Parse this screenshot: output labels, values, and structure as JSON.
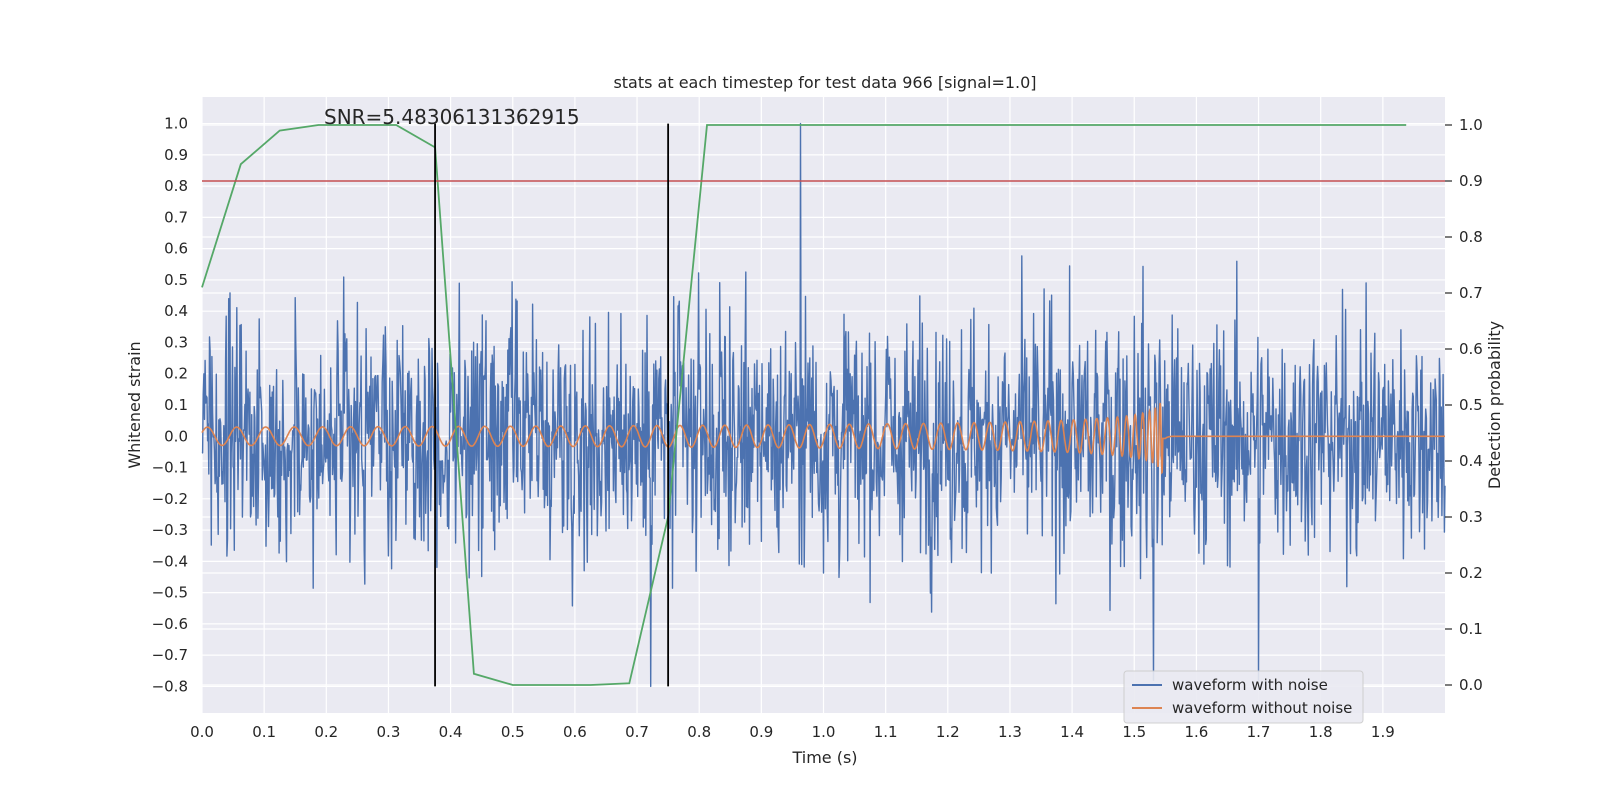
{
  "chart_data": {
    "type": "line",
    "title": "stats at each timestep for test data 966 [signal=1.0]",
    "xlabel": "Time (s)",
    "ylabel": "Whitened strain",
    "y2label": "Detection probability",
    "annotation": "SNR=5.48306131362915",
    "xlim": [
      0.0,
      2.0
    ],
    "ylim": [
      -0.885,
      1.085
    ],
    "y2lim": [
      -0.05,
      1.05
    ],
    "xticks": [
      "0.0",
      "0.1",
      "0.2",
      "0.3",
      "0.4",
      "0.5",
      "0.6",
      "0.7",
      "0.8",
      "0.9",
      "1.0",
      "1.1",
      "1.2",
      "1.3",
      "1.4",
      "1.5",
      "1.6",
      "1.7",
      "1.8",
      "1.9"
    ],
    "yticks": [
      "1.0",
      "0.9",
      "0.8",
      "0.7",
      "0.6",
      "0.5",
      "0.4",
      "0.3",
      "0.2",
      "0.1",
      "0.0",
      "−0.1",
      "−0.2",
      "−0.3",
      "−0.4",
      "−0.5",
      "−0.6",
      "−0.7",
      "−0.8"
    ],
    "y2ticks": [
      "1.0",
      "0.9",
      "0.8",
      "0.7",
      "0.6",
      "0.5",
      "0.4",
      "0.3",
      "0.2",
      "0.1",
      "0.0"
    ],
    "grid": true,
    "legend_position": "lower right",
    "series": [
      {
        "name": "waveform with noise",
        "color": "#4c72b0",
        "description": "noisy whitened strain, values mostly between -0.8 and 0.7, peak 1.0 near t=0.96",
        "x_range": [
          0.0,
          2.0
        ],
        "amplitude_typical": 0.6,
        "peaks": [
          [
            0.963,
            1.0
          ],
          [
            0.722,
            -0.8
          ],
          [
            1.531,
            -0.78
          ],
          [
            1.7,
            -0.78
          ]
        ]
      },
      {
        "name": "waveform without noise",
        "color": "#dd8452",
        "description": "chirp signal increasing in frequency and amplitude, merger near t=1.55 s, then flat",
        "x_range": [
          0.0,
          2.0
        ],
        "merger_time": 1.55,
        "start_amplitude": 0.03,
        "peak_amplitude": 0.16
      },
      {
        "color": "#55a868",
        "axis": "right",
        "x": [
          0.0,
          0.0625,
          0.125,
          0.1875,
          0.25,
          0.3125,
          0.375,
          0.4375,
          0.5,
          0.5625,
          0.625,
          0.6875,
          0.75,
          0.8125,
          0.875,
          0.9375,
          1.0,
          1.0625,
          1.125,
          1.1875,
          1.25,
          1.3125,
          1.375,
          1.4375,
          1.5,
          1.5625,
          1.625,
          1.6875,
          1.75,
          1.8125,
          1.875,
          1.9375
        ],
        "values": [
          0.71,
          0.93,
          0.99,
          1.0,
          1.0,
          1.0,
          0.96,
          0.02,
          0.0,
          0.0,
          0.0,
          0.003,
          0.3,
          1.0,
          1.0,
          1.0,
          1.0,
          1.0,
          1.0,
          1.0,
          1.0,
          1.0,
          1.0,
          1.0,
          1.0,
          1.0,
          1.0,
          1.0,
          1.0,
          1.0,
          1.0,
          1.0
        ]
      }
    ],
    "hlines": [
      {
        "axis": "right",
        "y": 0.9,
        "color": "#c44e52"
      }
    ],
    "vlines": [
      {
        "x": 0.375,
        "ymin": -0.8,
        "ymax": 1.0,
        "color": "#000000"
      },
      {
        "x": 0.75,
        "ymin": -0.8,
        "ymax": 1.0,
        "color": "#000000"
      }
    ],
    "colors": {
      "plot_bg": "#eaeaf2",
      "grid": "#ffffff"
    }
  }
}
